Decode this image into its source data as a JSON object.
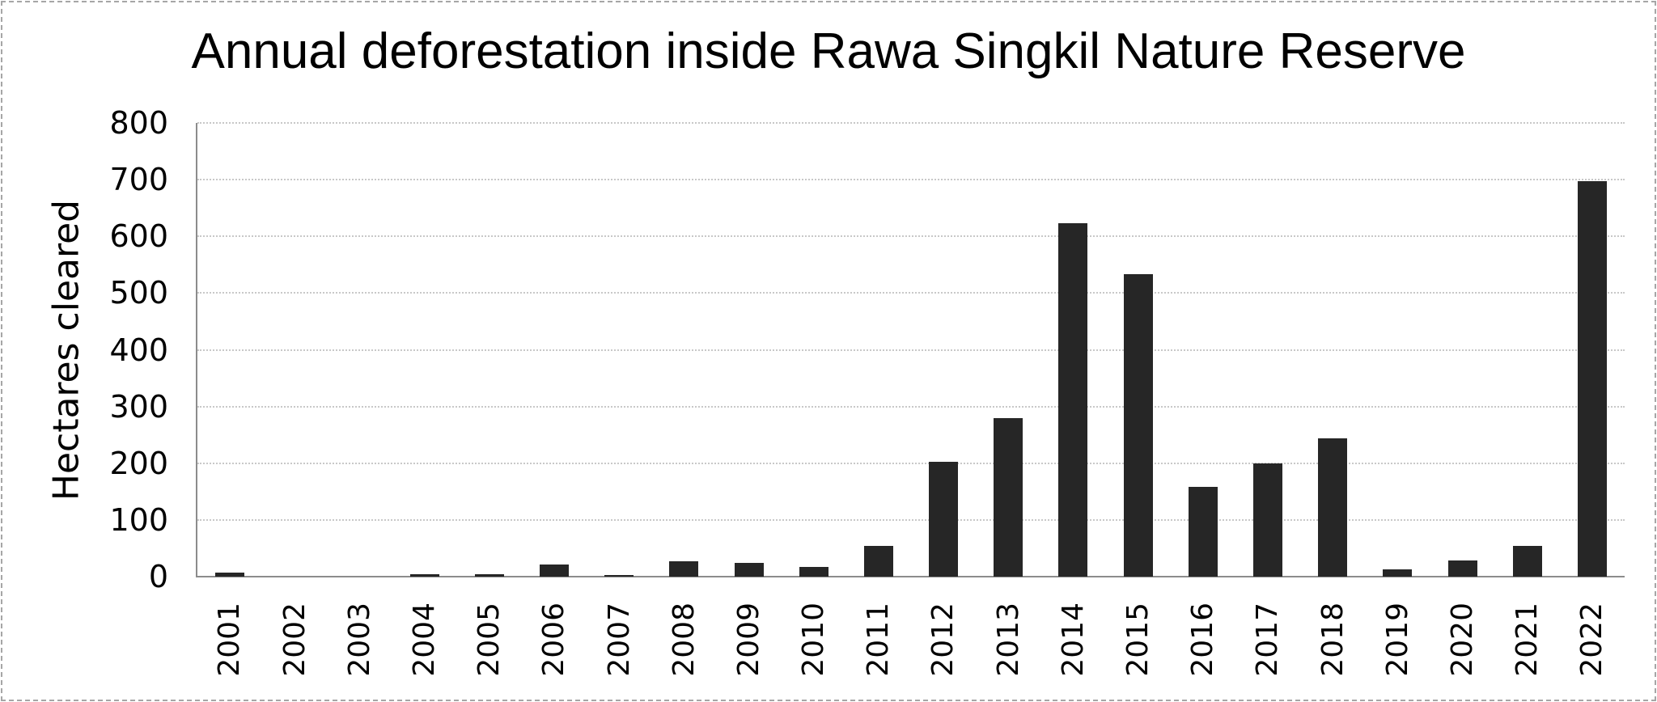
{
  "chart_data": {
    "type": "bar",
    "title": "Annual deforestation inside Rawa Singkil Nature Reserve",
    "xlabel": "",
    "ylabel": "Hectares cleared",
    "ylim": [
      0,
      800
    ],
    "yticks": [
      0,
      100,
      200,
      300,
      400,
      500,
      600,
      700,
      800
    ],
    "grid": true,
    "legend": null,
    "bar_color": "#262626",
    "categories": [
      "2001",
      "2002",
      "2003",
      "2004",
      "2005",
      "2006",
      "2007",
      "2008",
      "2009",
      "2010",
      "2011",
      "2012",
      "2013",
      "2014",
      "2015",
      "2016",
      "2017",
      "2018",
      "2019",
      "2020",
      "2021",
      "2022"
    ],
    "values": [
      7,
      0,
      0,
      5,
      5,
      21,
      1,
      27,
      24,
      17,
      54,
      202,
      279,
      623,
      533,
      158,
      200,
      244,
      13,
      29,
      54,
      698
    ]
  }
}
